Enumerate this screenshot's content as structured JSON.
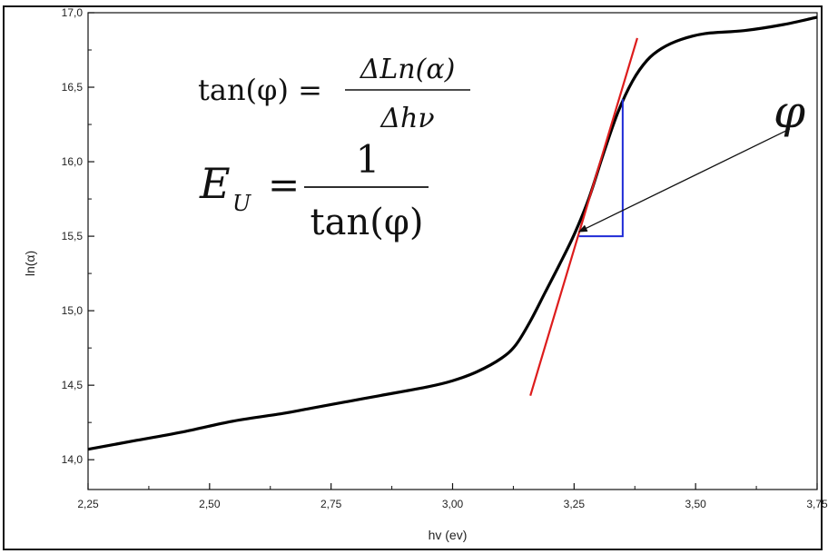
{
  "chart_data": {
    "type": "line",
    "xlabel": "hv (ev)",
    "ylabel": "ln(α)",
    "xlim": [
      2.25,
      3.75
    ],
    "ylim": [
      13.8,
      17.0
    ],
    "x_ticks": [
      "2,25",
      "2,50",
      "2,75",
      "3,00",
      "3,25",
      "3,50",
      "3,75"
    ],
    "y_ticks": [
      "14,0",
      "14,5",
      "15,0",
      "15,5",
      "16,0",
      "16,5",
      "17,0"
    ],
    "x_tick_values": [
      2.25,
      2.5,
      2.75,
      3.0,
      3.25,
      3.5,
      3.75
    ],
    "y_tick_values": [
      14.0,
      14.5,
      15.0,
      15.5,
      16.0,
      16.5,
      17.0
    ],
    "series": [
      {
        "color": "#000000",
        "x": [
          2.25,
          2.35,
          2.45,
          2.55,
          2.65,
          2.7,
          2.75,
          2.85,
          2.95,
          3.0,
          3.05,
          3.1,
          3.13,
          3.16,
          3.19,
          3.22,
          3.25,
          3.28,
          3.31,
          3.34,
          3.37,
          3.4,
          3.43,
          3.47,
          3.52,
          3.6,
          3.68,
          3.75
        ],
        "y": [
          14.07,
          14.13,
          14.19,
          14.26,
          14.31,
          14.34,
          14.37,
          14.43,
          14.49,
          14.53,
          14.59,
          14.68,
          14.77,
          14.93,
          15.12,
          15.31,
          15.51,
          15.75,
          16.05,
          16.33,
          16.54,
          16.68,
          16.76,
          16.82,
          16.86,
          16.88,
          16.92,
          16.97
        ]
      }
    ],
    "tangent_line": {
      "color": "#dd1c1c",
      "x": [
        3.16,
        3.38
      ],
      "y": [
        14.43,
        16.83
      ]
    },
    "slope_triangle": {
      "color": "#1f2bd6",
      "x": [
        3.26,
        3.35,
        3.35
      ],
      "y": [
        15.5,
        15.5,
        16.42
      ]
    },
    "arrow": {
      "from": [
        3.75,
        16.22
      ],
      "to": [
        3.26,
        15.53
      ]
    },
    "annotations": {
      "phi_label": "φ",
      "formula1_lhs": "tan(φ) =",
      "formula1_num": "ΔLn(α)",
      "formula1_den": "Δhν",
      "formula2_lhs_main": "E",
      "formula2_lhs_sub": "U",
      "formula2_eq": "=",
      "formula2_num": "1",
      "formula2_den": "tan(φ)"
    }
  }
}
